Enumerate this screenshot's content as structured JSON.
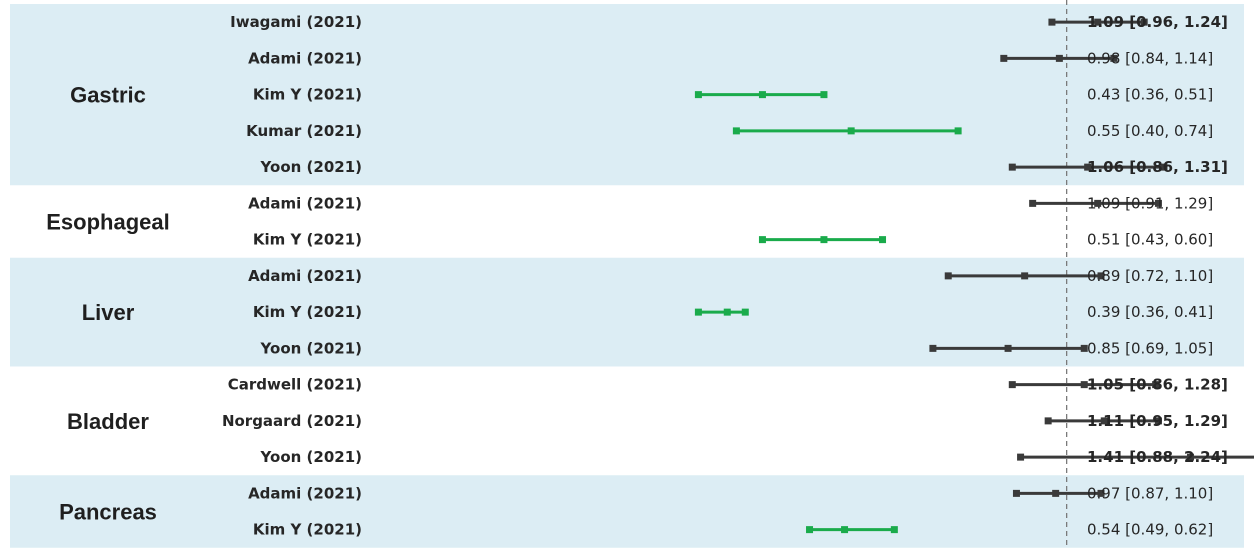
{
  "colors": {
    "band": "#dcedf4",
    "ci_default": "#3a3a3a",
    "ci_highlight": "#1aab4b",
    "reference_line": "#7a7a7a",
    "text": "#262626"
  },
  "chart_data": {
    "type": "forest",
    "reference_value": 1.0,
    "xlim": [
      0.3,
      2.24
    ],
    "x_scale": "log",
    "groups": [
      {
        "name": "Gastric",
        "shaded": true,
        "studies": [
          {
            "study": "Iwagami (2021)",
            "estimate": 1.09,
            "lower": 0.96,
            "upper": 1.24,
            "label": "1.09 [0.96, 1.24]",
            "highlight": false,
            "bold_label": true
          },
          {
            "study": "Adami (2021)",
            "estimate": 0.98,
            "lower": 0.84,
            "upper": 1.14,
            "label": "0.98 [0.84, 1.14]",
            "highlight": false,
            "bold_label": false
          },
          {
            "study": "Kim Y (2021)",
            "estimate": 0.43,
            "lower": 0.36,
            "upper": 0.51,
            "label": "0.43 [0.36, 0.51]",
            "highlight": true,
            "bold_label": false
          },
          {
            "study": "Kumar (2021)",
            "estimate": 0.55,
            "lower": 0.4,
            "upper": 0.74,
            "label": "0.55 [0.40, 0.74]",
            "highlight": true,
            "bold_label": false
          },
          {
            "study": "Yoon (2021)",
            "estimate": 1.06,
            "lower": 0.86,
            "upper": 1.31,
            "label": "1.06 [0.86, 1.31]",
            "highlight": false,
            "bold_label": true
          }
        ]
      },
      {
        "name": "Esophageal",
        "shaded": false,
        "studies": [
          {
            "study": "Adami (2021)",
            "estimate": 1.09,
            "lower": 0.91,
            "upper": 1.29,
            "label": "1.09 [0.91, 1.29]",
            "highlight": false,
            "bold_label": false
          },
          {
            "study": "Kim Y (2021)",
            "estimate": 0.51,
            "lower": 0.43,
            "upper": 0.6,
            "label": "0.51 [0.43, 0.60]",
            "highlight": true,
            "bold_label": false
          }
        ]
      },
      {
        "name": "Liver",
        "shaded": true,
        "studies": [
          {
            "study": "Adami (2021)",
            "estimate": 0.89,
            "lower": 0.72,
            "upper": 1.1,
            "label": "0.89 [0.72, 1.10]",
            "highlight": false,
            "bold_label": false
          },
          {
            "study": "Kim Y (2021)",
            "estimate": 0.39,
            "lower": 0.36,
            "upper": 0.41,
            "label": "0.39 [0.36, 0.41]",
            "highlight": true,
            "bold_label": false
          },
          {
            "study": "Yoon (2021)",
            "estimate": 0.85,
            "lower": 0.69,
            "upper": 1.05,
            "label": "0.85 [0.69, 1.05]",
            "highlight": false,
            "bold_label": false
          }
        ]
      },
      {
        "name": "Bladder",
        "shaded": false,
        "studies": [
          {
            "study": "Cardwell (2021)",
            "estimate": 1.05,
            "lower": 0.86,
            "upper": 1.28,
            "label": "1.05 [0.86, 1.28]",
            "highlight": false,
            "bold_label": true
          },
          {
            "study": "Norgaard (2021)",
            "estimate": 1.11,
            "lower": 0.95,
            "upper": 1.29,
            "label": "1.11 [0.95, 1.29]",
            "highlight": false,
            "bold_label": true
          },
          {
            "study": "Yoon (2021)",
            "estimate": 1.41,
            "lower": 0.88,
            "upper": 2.24,
            "label": "1.41 [0.88, 2.24]",
            "highlight": false,
            "bold_label": true
          }
        ]
      },
      {
        "name": "Pancreas",
        "shaded": true,
        "studies": [
          {
            "study": "Adami (2021)",
            "estimate": 0.97,
            "lower": 0.87,
            "upper": 1.1,
            "label": "0.97 [0.87, 1.10]",
            "highlight": false,
            "bold_label": false
          },
          {
            "study": "Kim Y (2021)",
            "estimate": 0.54,
            "lower": 0.49,
            "upper": 0.62,
            "label": "0.54 [0.49, 0.62]",
            "highlight": true,
            "bold_label": false
          }
        ]
      }
    ]
  }
}
